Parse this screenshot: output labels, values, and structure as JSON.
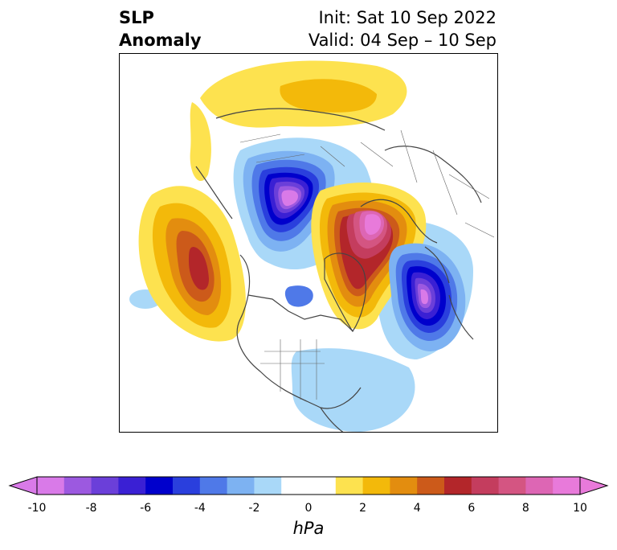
{
  "title": {
    "left_line1": "SLP",
    "left_line2": "Anomaly",
    "init": "Init: Sat 10 Sep 2022",
    "valid": "Valid: 04 Sep – 10 Sep"
  },
  "colorbar": {
    "unit": "hPa",
    "ticks": [
      "-10",
      "-8",
      "-6",
      "-4",
      "-2",
      "0",
      "2",
      "4",
      "6",
      "8",
      "10"
    ],
    "colors": [
      "#d97ae8",
      "#9c59e0",
      "#6b3fd9",
      "#3a20d4",
      "#0000cc",
      "#2a3fdd",
      "#4f79e8",
      "#7db2f2",
      "#a9d8f8",
      "#ffffff",
      "#ffffff",
      "#fde24f",
      "#f3b90a",
      "#e38d0f",
      "#cc5a1a",
      "#b3262a",
      "#c43d5e",
      "#d45582",
      "#dd66b4",
      "#e87ada"
    ]
  },
  "colors": {
    "land_outline": "#444444",
    "low_anomaly": "#0000cc",
    "high_anomaly": "#b3262a"
  }
}
